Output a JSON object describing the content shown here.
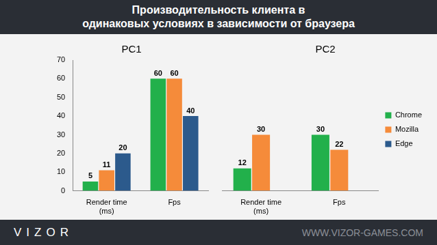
{
  "header": {
    "title": [
      "Производительность клиента в",
      "одинаковых условиях в зависимости от браузера"
    ]
  },
  "footer": {
    "brand": "VIZOR",
    "site": "WWW.VIZOR-GAMES.COM"
  },
  "chart_data": [
    {
      "type": "bar",
      "title": "PC1",
      "categories": [
        "Render time\n(ms)",
        "Fps"
      ],
      "series": [
        {
          "name": "Chrome",
          "color": "#22b04b",
          "values": [
            5,
            60
          ]
        },
        {
          "name": "Mozilla",
          "color": "#f58b3a",
          "values": [
            11,
            60
          ]
        },
        {
          "name": "Edge",
          "color": "#2c5a8c",
          "values": [
            20,
            40
          ]
        }
      ],
      "ylim": [
        0,
        70
      ],
      "yticks": [
        0,
        10,
        20,
        30,
        40,
        50,
        60,
        70
      ],
      "grid": false,
      "data_labels": true
    },
    {
      "type": "bar",
      "title": "PC2",
      "categories": [
        "Render time\n(ms)",
        "Fps"
      ],
      "series": [
        {
          "name": "Chrome",
          "color": "#22b04b",
          "values": [
            12,
            30
          ]
        },
        {
          "name": "Mozilla",
          "color": "#f58b3a",
          "values": [
            30,
            22
          ]
        },
        {
          "name": "Edge",
          "color": "#2c5a8c",
          "values": [
            null,
            null
          ]
        }
      ],
      "ylim": [
        0,
        70
      ],
      "yticks": [
        0,
        10,
        20,
        30,
        40,
        50,
        60,
        70
      ],
      "grid": false,
      "data_labels": true,
      "tick_labels": "x",
      "legend": "right"
    }
  ]
}
